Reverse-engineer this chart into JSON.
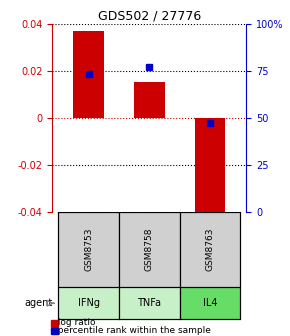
{
  "title": "GDS502 / 27776",
  "samples": [
    "GSM8753",
    "GSM8758",
    "GSM8763"
  ],
  "agents": [
    "IFNg",
    "TNFa",
    "IL4"
  ],
  "log_ratios": [
    0.037,
    0.015,
    -0.043
  ],
  "percentile_ranks": [
    0.73,
    0.77,
    0.47
  ],
  "bar_color": "#cc0000",
  "dot_color": "#0000cc",
  "ylim": [
    -0.04,
    0.04
  ],
  "right_ylim": [
    0,
    100
  ],
  "right_yticks": [
    0,
    25,
    50,
    75,
    100
  ],
  "right_yticklabels": [
    "0",
    "25",
    "50",
    "75",
    "100%"
  ],
  "left_yticks": [
    -0.04,
    -0.02,
    0,
    0.02,
    0.04
  ],
  "grid_color": "#000000",
  "zero_line_color": "#cc0000",
  "agent_colors": [
    "#c8f0c8",
    "#c8f0c8",
    "#66dd66"
  ],
  "sample_bg_color": "#d0d0d0",
  "box_edge_color": "#000000",
  "legend_log_color": "#cc0000",
  "legend_pct_color": "#0000cc"
}
